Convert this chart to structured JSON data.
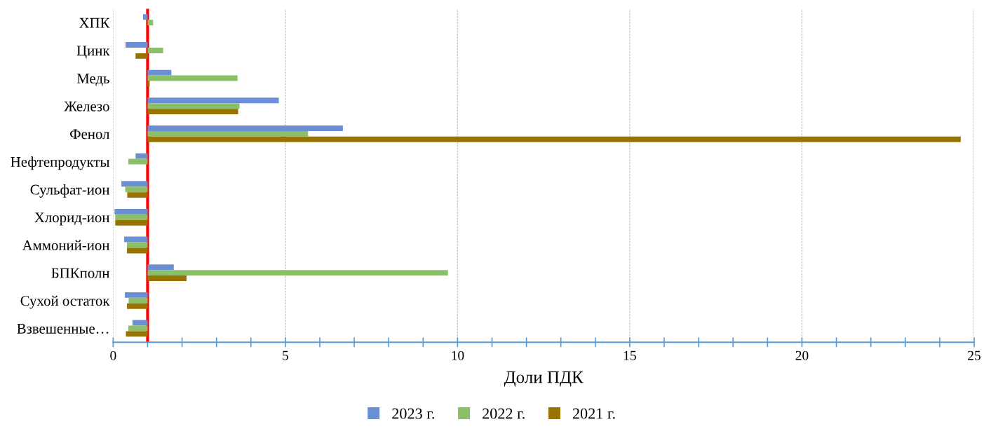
{
  "chart_data": {
    "type": "bar",
    "orientation": "horizontal",
    "xlabel": "Доли ПДК",
    "categories": [
      "ХПК",
      "Цинк",
      "Медь",
      "Железо",
      "Фенол",
      "Нефтепродукты",
      "Сульфат-ион",
      "Хлорид-ион",
      "Аммоний-ион",
      "БПКполн",
      "Сухой остаток",
      "Взвешенные…"
    ],
    "series": [
      {
        "name": "2023 г.",
        "color": "#6a8fd4",
        "base": [
          1,
          1,
          1,
          1,
          1,
          1,
          1,
          1,
          1,
          1,
          1,
          1
        ],
        "values": [
          -0.13,
          -0.64,
          0.69,
          3.81,
          5.67,
          -0.35,
          -0.76,
          -0.96,
          -0.68,
          0.76,
          -0.66,
          -0.44
        ]
      },
      {
        "name": "2022 г.",
        "color": "#8cc068",
        "base": [
          1,
          1,
          1,
          1,
          1,
          1,
          1,
          1,
          1,
          1,
          1,
          1
        ],
        "values": [
          0.16,
          0.45,
          2.61,
          2.67,
          4.66,
          -0.56,
          -0.65,
          -0.94,
          -0.6,
          8.72,
          -0.55,
          -0.56
        ]
      },
      {
        "name": "2021 г.",
        "color": "#997300",
        "base": [
          null,
          1,
          1,
          1,
          1,
          null,
          1,
          1,
          1,
          1,
          1,
          1
        ],
        "values": [
          null,
          -0.35,
          0.06,
          2.63,
          23.61,
          null,
          -0.59,
          -0.94,
          -0.6,
          1.13,
          -0.6,
          -0.63
        ]
      }
    ],
    "xlim": [
      0,
      25
    ],
    "xticks": [
      0,
      5,
      10,
      15,
      20,
      25
    ],
    "grid": "x",
    "legend": "bottom",
    "ref_lines": [
      {
        "axis": "x",
        "value": 1,
        "label": null,
        "color": "#ff0000"
      }
    ]
  }
}
